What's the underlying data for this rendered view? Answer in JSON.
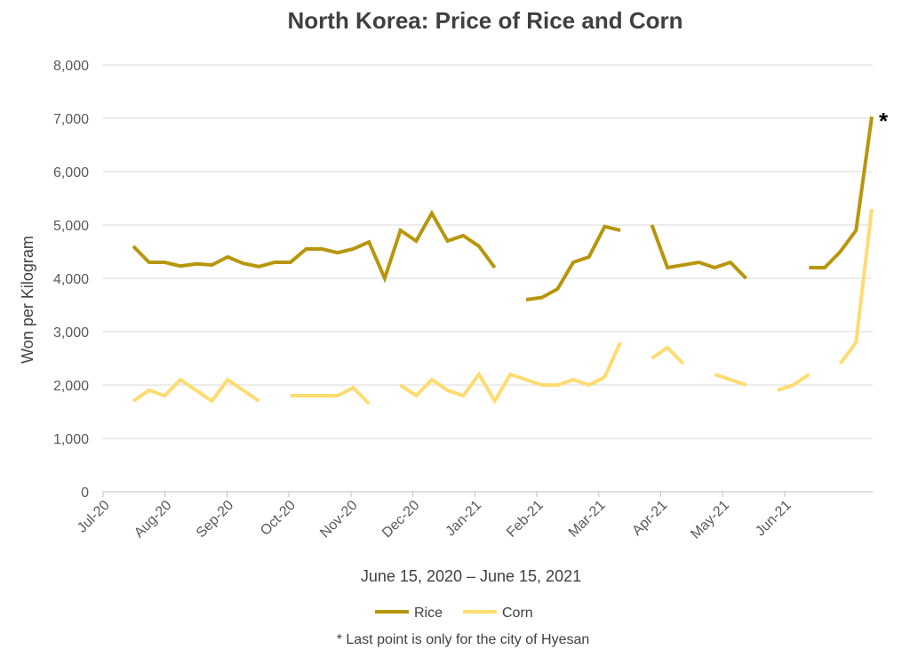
{
  "chart_data": {
    "type": "line",
    "title": "North Korea: Price of Rice and Corn",
    "ylabel": "Won per Kilogram",
    "xlabel": "June 15, 2020 – June 15, 2021",
    "ylim": [
      0,
      8000
    ],
    "yticks": [
      "0",
      "1,000",
      "2,000",
      "3,000",
      "4,000",
      "5,000",
      "6,000",
      "7,000",
      "8,000"
    ],
    "xticks": [
      "Jul-20",
      "Aug-20",
      "Sep-20",
      "Oct-20",
      "Nov-20",
      "Dec-20",
      "Jan-21",
      "Feb-21",
      "Mar-21",
      "Apr-21",
      "May-21",
      "Jun-21"
    ],
    "grid": true,
    "legend": "bottom",
    "footnote": "* Last point is only for the city of Hyesan",
    "marker": "*",
    "series": [
      {
        "name": "Rice",
        "color": "#b8960c",
        "values": [
          4600,
          4300,
          4300,
          4230,
          4270,
          4250,
          4400,
          4280,
          4220,
          4300,
          4300,
          4550,
          4550,
          4480,
          4550,
          4680,
          4000,
          4900,
          4700,
          5220,
          4700,
          4800,
          4600,
          4200,
          null,
          3600,
          3640,
          3800,
          4300,
          4400,
          4970,
          4900,
          null,
          5000,
          4200,
          4250,
          4300,
          4200,
          4300,
          4000,
          null,
          null,
          null,
          4200,
          4200,
          4500,
          4900,
          7030
        ]
      },
      {
        "name": "Corn",
        "color": "#ffdb70",
        "values": [
          1700,
          1900,
          1800,
          2100,
          1900,
          1700,
          2100,
          1900,
          1700,
          null,
          1800,
          1800,
          1800,
          1800,
          1950,
          1650,
          null,
          2000,
          1800,
          2100,
          1900,
          1800,
          2200,
          1700,
          2200,
          2100,
          2000,
          2000,
          2100,
          2000,
          2150,
          2800,
          null,
          2500,
          2700,
          2400,
          null,
          2200,
          2100,
          2000,
          null,
          1900,
          2000,
          2200,
          null,
          2400,
          2800,
          5300
        ]
      }
    ]
  }
}
